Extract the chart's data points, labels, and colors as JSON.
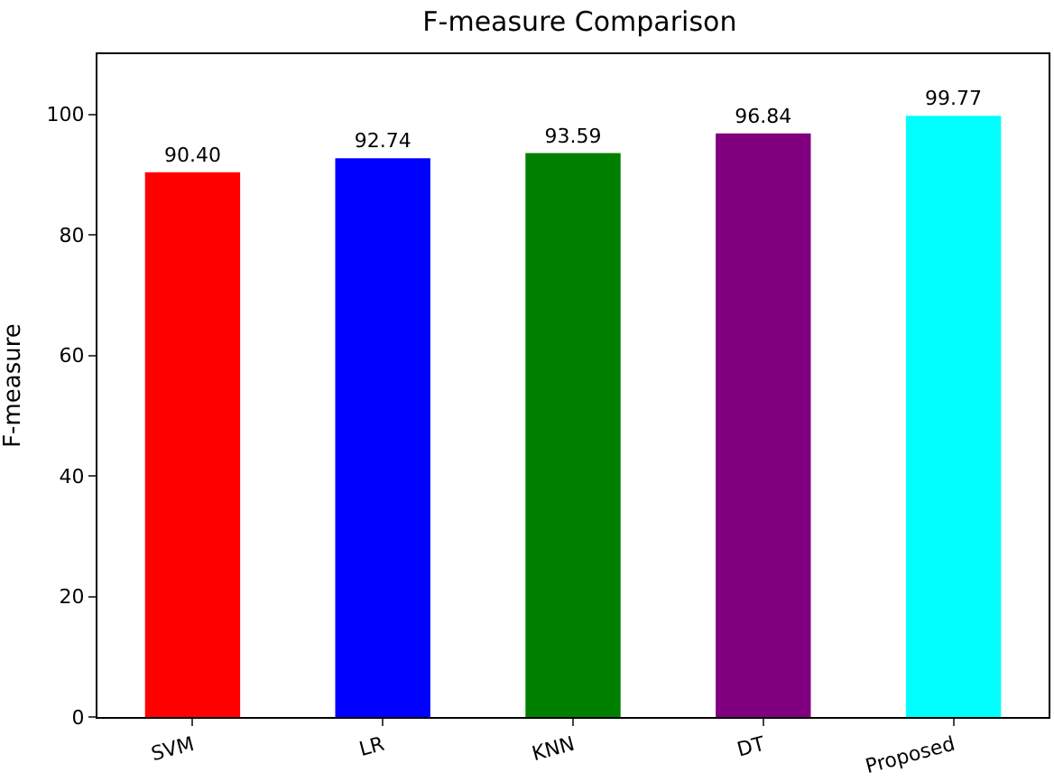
{
  "chart_data": {
    "type": "bar",
    "title": "F-measure Comparison",
    "ylabel": "F-measure",
    "categories": [
      "SVM",
      "LR",
      "KNN",
      "DT",
      "Proposed"
    ],
    "values": [
      90.4,
      92.74,
      93.59,
      96.84,
      99.77
    ],
    "colors": [
      "#ff0000",
      "#0000ff",
      "#008000",
      "#800080",
      "#00ffff"
    ],
    "value_labels": [
      "90.40",
      "92.74",
      "93.59",
      "96.84",
      "99.77"
    ],
    "ylim": [
      0,
      110
    ],
    "yticks": [
      0,
      20,
      40,
      60,
      80,
      100
    ]
  }
}
